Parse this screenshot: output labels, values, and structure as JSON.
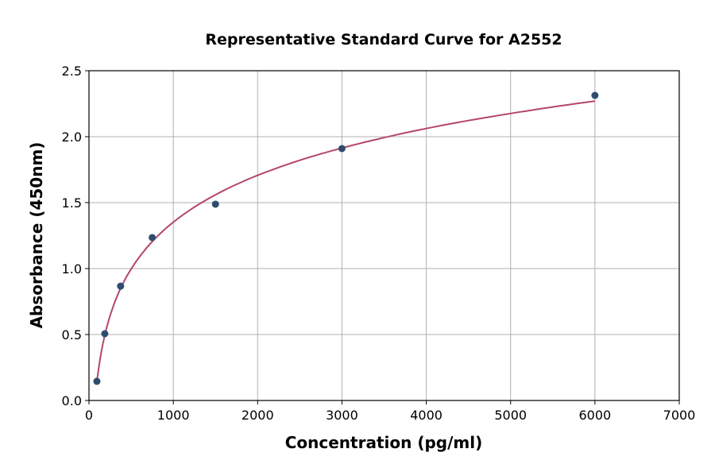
{
  "chart_data": {
    "type": "scatter",
    "title": "Representative Standard Curve for A2552",
    "xlabel": "Concentration (pg/ml)",
    "ylabel": "Absorbance (450nm)",
    "xlim": [
      0,
      7000
    ],
    "ylim": [
      0,
      2.5
    ],
    "xticks": [
      0,
      1000,
      2000,
      3000,
      4000,
      5000,
      6000,
      7000
    ],
    "yticks": [
      "0.0",
      "0.5",
      "1.0",
      "1.5",
      "2.0",
      "2.5"
    ],
    "grid": true,
    "points": {
      "x": [
        93.75,
        187.5,
        375,
        750,
        1500,
        3000,
        6000
      ],
      "y": [
        0.145,
        0.506,
        0.867,
        1.235,
        1.488,
        1.91,
        2.313
      ]
    },
    "fit_curve": {
      "x": [
        93.75,
        150,
        250,
        400,
        600,
        900,
        1300,
        1800,
        2500,
        3200,
        4000,
        5000,
        6000
      ],
      "y": [
        0.14,
        0.381,
        0.642,
        0.883,
        1.09,
        1.298,
        1.486,
        1.653,
        1.821,
        1.947,
        2.062,
        2.176,
        2.27
      ]
    },
    "colors": {
      "points": "#2e4d6e",
      "curve": "#b5466b",
      "grid": "#b0b0b0"
    }
  }
}
